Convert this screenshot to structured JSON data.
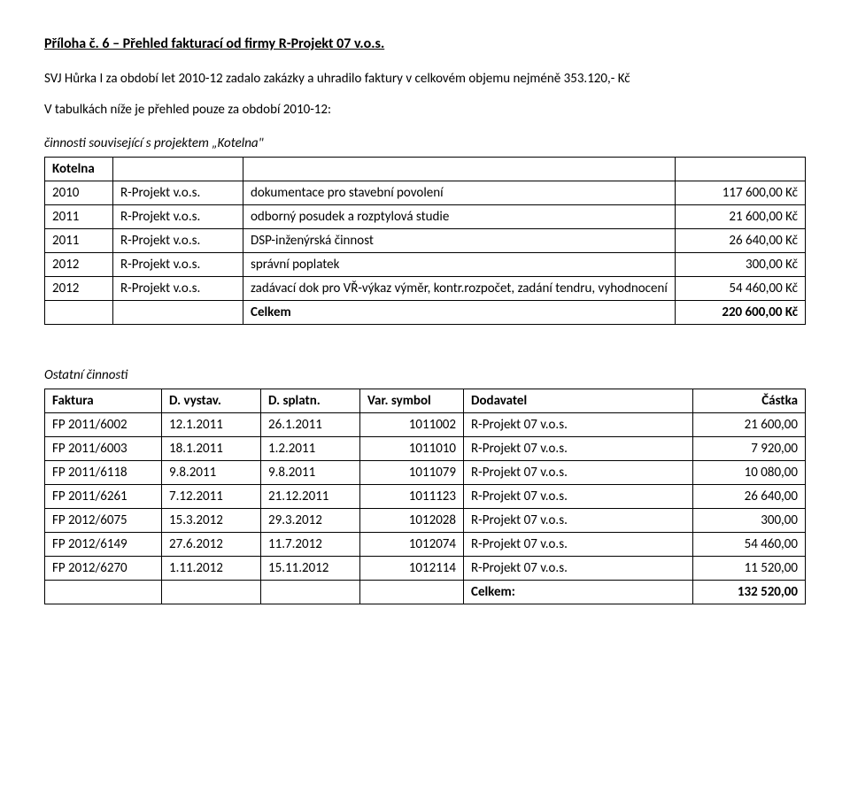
{
  "title": "Příloha č. 6 – Přehled fakturací od firmy R-Projekt 07 v.o.s.",
  "intro_line1": "SVJ Hůrka I za období let 2010-12 zadalo zakázky a uhradilo faktury v celkovém objemu nejméně 353.120,- Kč",
  "intro_line2": "V tabulkách níže je přehled pouze za období 2010-12:",
  "section1_label": "činnosti související s projektem „Kotelna\"",
  "kotelna": {
    "header": "Kotelna",
    "rows": [
      {
        "year": "2010",
        "firm": "R-Projekt v.o.s.",
        "desc": "dokumentace pro stavební povolení",
        "amount": "117 600,00 Kč"
      },
      {
        "year": "2011",
        "firm": "R-Projekt v.o.s.",
        "desc": "odborný posudek a rozptylová studie",
        "amount": "21 600,00 Kč"
      },
      {
        "year": "2011",
        "firm": "R-Projekt v.o.s.",
        "desc": "DSP-inženýrská činnost",
        "amount": "26 640,00 Kč"
      },
      {
        "year": "2012",
        "firm": "R-Projekt v.o.s.",
        "desc": "správní poplatek",
        "amount": "300,00 Kč"
      },
      {
        "year": "2012",
        "firm": "R-Projekt v.o.s.",
        "desc": "zadávací dok pro VŘ-výkaz výměr, kontr.rozpočet, zadání tendru, vyhodnocení",
        "amount": "54 460,00 Kč"
      }
    ],
    "sum_label": "Celkem",
    "sum_value": "220 600,00 Kč"
  },
  "section2_label": "Ostatní činnosti",
  "ostatni": {
    "headers": [
      "Faktura",
      "D. vystav.",
      "D. splatn.",
      "Var. symbol",
      "Dodavatel",
      "Částka"
    ],
    "rows": [
      {
        "c": [
          "FP 2011/6002",
          "12.1.2011",
          "26.1.2011",
          "1011002",
          "R-Projekt 07 v.o.s.",
          "21 600,00"
        ]
      },
      {
        "c": [
          "FP 2011/6003",
          "18.1.2011",
          "1.2.2011",
          "1011010",
          "R-Projekt 07 v.o.s.",
          "7 920,00"
        ]
      },
      {
        "c": [
          "FP 2011/6118",
          "9.8.2011",
          "9.8.2011",
          "1011079",
          "R-Projekt 07 v.o.s.",
          "10 080,00"
        ]
      },
      {
        "c": [
          "FP 2011/6261",
          "7.12.2011",
          "21.12.2011",
          "1011123",
          "R-Projekt 07 v.o.s.",
          "26 640,00"
        ]
      },
      {
        "c": [
          "FP 2012/6075",
          "15.3.2012",
          "29.3.2012",
          "1012028",
          "R-Projekt 07 v.o.s.",
          "300,00"
        ]
      },
      {
        "c": [
          "FP 2012/6149",
          "27.6.2012",
          "11.7.2012",
          "1012074",
          "R-Projekt 07 v.o.s.",
          "54 460,00"
        ]
      },
      {
        "c": [
          "FP 2012/6270",
          "1.11.2012",
          "15.11.2012",
          "1012114",
          "R-Projekt 07 v.o.s.",
          "11 520,00"
        ]
      }
    ],
    "sum_label": "Celkem:",
    "sum_value": "132 520,00"
  }
}
